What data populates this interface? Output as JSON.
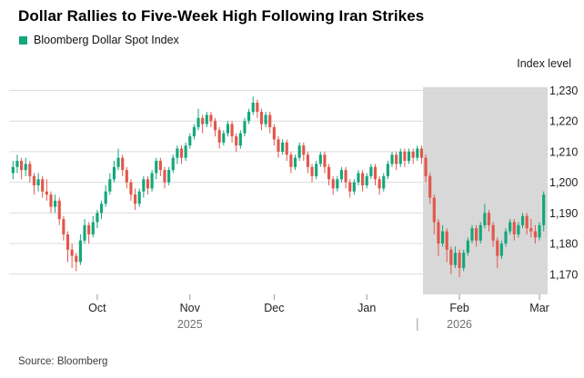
{
  "header": {
    "title": "Dollar Rallies to Five-Week High Following Iran Strikes",
    "legend_label": "Bloomberg Dollar Spot Index"
  },
  "axis": {
    "y_axis_title": "Index level"
  },
  "footer": {
    "source": "Source: Bloomberg"
  },
  "chart_data": {
    "type": "candlestick",
    "title": "Dollar Rallies to Five-Week High Following Iran Strikes",
    "series": "Bloomberg Dollar Spot Index",
    "unit": "index level",
    "x_range": "Sep 2025 - Mar 2026",
    "frequency": "daily trading days",
    "ylim": [
      1164,
      1234
    ],
    "y_ticks": [
      1170,
      1180,
      1190,
      1200,
      1210,
      1220,
      1230
    ],
    "y_tick_labels": [
      "1,170",
      "1,180",
      "1,190",
      "1,200",
      "1,210",
      "1,220",
      "1,230"
    ],
    "month_ticks": [
      {
        "label": "Oct",
        "index": 20
      },
      {
        "label": "Nov",
        "index": 42
      },
      {
        "label": "Dec",
        "index": 62
      },
      {
        "label": "Jan",
        "index": 84
      },
      {
        "label": "Feb",
        "index": 106
      },
      {
        "label": "Mar",
        "index": 125
      }
    ],
    "year_labels": [
      {
        "label": "2025",
        "index": 42
      },
      {
        "label": "2026",
        "index": 106
      }
    ],
    "year_divider_index": 96,
    "highlight_region": {
      "start_index": 98,
      "end_index": 126,
      "color": "#d8d8d8"
    },
    "colors": {
      "up": "#13a77c",
      "down": "#e2574c",
      "grid": "#dcdcdc",
      "tick": "#999999",
      "label": "#222222",
      "year_label": "#707070"
    },
    "ohlc": [
      [
        1203,
        1207,
        1201,
        1205
      ],
      [
        1205,
        1209,
        1203,
        1207
      ],
      [
        1207,
        1208,
        1201,
        1204
      ],
      [
        1204,
        1208,
        1202,
        1206
      ],
      [
        1206,
        1207,
        1200,
        1202
      ],
      [
        1202,
        1203,
        1196,
        1199
      ],
      [
        1199,
        1203,
        1197,
        1201
      ],
      [
        1201,
        1202,
        1195,
        1197
      ],
      [
        1197,
        1201,
        1194,
        1196
      ],
      [
        1196,
        1197,
        1190,
        1192
      ],
      [
        1192,
        1196,
        1190,
        1194
      ],
      [
        1194,
        1195,
        1186,
        1188
      ],
      [
        1188,
        1189,
        1181,
        1183
      ],
      [
        1183,
        1184,
        1174,
        1178
      ],
      [
        1178,
        1180,
        1172,
        1176
      ],
      [
        1176,
        1177,
        1171,
        1174
      ],
      [
        1174,
        1183,
        1173,
        1181
      ],
      [
        1181,
        1188,
        1180,
        1186
      ],
      [
        1186,
        1187,
        1180,
        1183
      ],
      [
        1183,
        1189,
        1182,
        1187
      ],
      [
        1187,
        1191,
        1185,
        1190
      ],
      [
        1190,
        1194,
        1188,
        1193
      ],
      [
        1193,
        1199,
        1192,
        1197
      ],
      [
        1197,
        1203,
        1196,
        1201
      ],
      [
        1201,
        1207,
        1200,
        1205
      ],
      [
        1205,
        1211,
        1204,
        1208
      ],
      [
        1208,
        1209,
        1202,
        1204
      ],
      [
        1204,
        1205,
        1198,
        1200
      ],
      [
        1200,
        1201,
        1194,
        1196
      ],
      [
        1196,
        1198,
        1191,
        1193
      ],
      [
        1193,
        1198,
        1192,
        1197
      ],
      [
        1197,
        1202,
        1195,
        1201
      ],
      [
        1201,
        1202,
        1196,
        1198
      ],
      [
        1198,
        1204,
        1197,
        1203
      ],
      [
        1203,
        1208,
        1201,
        1207
      ],
      [
        1207,
        1208,
        1202,
        1204
      ],
      [
        1204,
        1205,
        1198,
        1200
      ],
      [
        1200,
        1205,
        1199,
        1204
      ],
      [
        1204,
        1209,
        1203,
        1208
      ],
      [
        1208,
        1212,
        1206,
        1211
      ],
      [
        1211,
        1212,
        1206,
        1208
      ],
      [
        1208,
        1213,
        1207,
        1212
      ],
      [
        1212,
        1216,
        1211,
        1215
      ],
      [
        1215,
        1219,
        1214,
        1218
      ],
      [
        1218,
        1224,
        1217,
        1221
      ],
      [
        1221,
        1222,
        1216,
        1219
      ],
      [
        1219,
        1223,
        1218,
        1222
      ],
      [
        1222,
        1223,
        1218,
        1220
      ],
      [
        1220,
        1221,
        1215,
        1217
      ],
      [
        1217,
        1218,
        1211,
        1213
      ],
      [
        1213,
        1217,
        1212,
        1216
      ],
      [
        1216,
        1220,
        1215,
        1219
      ],
      [
        1219,
        1220,
        1213,
        1215
      ],
      [
        1215,
        1216,
        1210,
        1212
      ],
      [
        1212,
        1217,
        1211,
        1216
      ],
      [
        1216,
        1221,
        1215,
        1220
      ],
      [
        1220,
        1224,
        1219,
        1223
      ],
      [
        1223,
        1228,
        1222,
        1226
      ],
      [
        1226,
        1227,
        1221,
        1223
      ],
      [
        1223,
        1224,
        1217,
        1219
      ],
      [
        1219,
        1223,
        1218,
        1222
      ],
      [
        1222,
        1223,
        1216,
        1218
      ],
      [
        1218,
        1219,
        1212,
        1214
      ],
      [
        1214,
        1215,
        1208,
        1210
      ],
      [
        1210,
        1214,
        1209,
        1213
      ],
      [
        1213,
        1214,
        1207,
        1209
      ],
      [
        1209,
        1210,
        1203,
        1205
      ],
      [
        1205,
        1209,
        1204,
        1208
      ],
      [
        1208,
        1213,
        1207,
        1212
      ],
      [
        1212,
        1213,
        1207,
        1209
      ],
      [
        1209,
        1210,
        1203,
        1205
      ],
      [
        1205,
        1206,
        1200,
        1202
      ],
      [
        1202,
        1207,
        1201,
        1206
      ],
      [
        1206,
        1210,
        1205,
        1209
      ],
      [
        1209,
        1210,
        1203,
        1205
      ],
      [
        1205,
        1206,
        1199,
        1201
      ],
      [
        1201,
        1202,
        1196,
        1198
      ],
      [
        1198,
        1202,
        1197,
        1201
      ],
      [
        1201,
        1205,
        1200,
        1204
      ],
      [
        1204,
        1205,
        1198,
        1200
      ],
      [
        1200,
        1201,
        1195,
        1197
      ],
      [
        1197,
        1201,
        1196,
        1200
      ],
      [
        1200,
        1204,
        1199,
        1203
      ],
      [
        1203,
        1204,
        1197,
        1199
      ],
      [
        1199,
        1203,
        1198,
        1202
      ],
      [
        1202,
        1206,
        1201,
        1205
      ],
      [
        1205,
        1206,
        1199,
        1201
      ],
      [
        1201,
        1202,
        1196,
        1198
      ],
      [
        1198,
        1203,
        1197,
        1202
      ],
      [
        1202,
        1207,
        1201,
        1206
      ],
      [
        1206,
        1210,
        1205,
        1209
      ],
      [
        1209,
        1210,
        1204,
        1206
      ],
      [
        1206,
        1211,
        1205,
        1210
      ],
      [
        1210,
        1211,
        1205,
        1207
      ],
      [
        1207,
        1211,
        1206,
        1210
      ],
      [
        1210,
        1211,
        1206,
        1208
      ],
      [
        1208,
        1212,
        1207,
        1211
      ],
      [
        1211,
        1212,
        1206,
        1208
      ],
      [
        1208,
        1209,
        1200,
        1202
      ],
      [
        1202,
        1203,
        1193,
        1195
      ],
      [
        1195,
        1196,
        1183,
        1187
      ],
      [
        1187,
        1188,
        1176,
        1180
      ],
      [
        1180,
        1186,
        1179,
        1184
      ],
      [
        1184,
        1185,
        1174,
        1178
      ],
      [
        1178,
        1179,
        1170,
        1173
      ],
      [
        1173,
        1179,
        1172,
        1177
      ],
      [
        1177,
        1178,
        1169,
        1172
      ],
      [
        1172,
        1178,
        1171,
        1177
      ],
      [
        1177,
        1182,
        1176,
        1181
      ],
      [
        1181,
        1186,
        1180,
        1185
      ],
      [
        1185,
        1186,
        1179,
        1181
      ],
      [
        1181,
        1187,
        1180,
        1186
      ],
      [
        1186,
        1193,
        1185,
        1190
      ],
      [
        1190,
        1191,
        1184,
        1186
      ],
      [
        1186,
        1187,
        1179,
        1181
      ],
      [
        1181,
        1182,
        1172,
        1176
      ],
      [
        1176,
        1181,
        1175,
        1180
      ],
      [
        1180,
        1185,
        1179,
        1184
      ],
      [
        1184,
        1188,
        1183,
        1187
      ],
      [
        1187,
        1188,
        1181,
        1183
      ],
      [
        1183,
        1187,
        1182,
        1186
      ],
      [
        1186,
        1190,
        1185,
        1189
      ],
      [
        1189,
        1190,
        1183,
        1185
      ],
      [
        1185,
        1188,
        1182,
        1184
      ],
      [
        1184,
        1186,
        1180,
        1182
      ],
      [
        1182,
        1187,
        1181,
        1186
      ],
      [
        1186,
        1197,
        1184,
        1196
      ]
    ]
  }
}
